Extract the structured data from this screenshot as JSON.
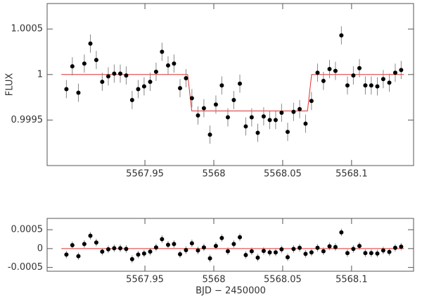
{
  "chart_data": [
    {
      "type": "scatter",
      "ylabel": "FLUX",
      "x": [
        5567.893,
        5567.8973,
        5567.9017,
        5567.906,
        5567.9104,
        5567.9147,
        5567.919,
        5567.9234,
        5567.9277,
        5567.9321,
        5567.9364,
        5567.9407,
        5567.9451,
        5567.9494,
        5567.9538,
        5567.9581,
        5567.9624,
        5567.9668,
        5567.9711,
        5567.9755,
        5567.9798,
        5567.9841,
        5567.9885,
        5567.9928,
        5567.9972,
        5568.0015,
        5568.0058,
        5568.0102,
        5568.0145,
        5568.0189,
        5568.0232,
        5568.0275,
        5568.0319,
        5568.0362,
        5568.0406,
        5568.0449,
        5568.0492,
        5568.0536,
        5568.0579,
        5568.0623,
        5568.0666,
        5568.0709,
        5568.0753,
        5568.0796,
        5568.084,
        5568.0883,
        5568.0926,
        5568.097,
        5568.1013,
        5568.1057,
        5568.11,
        5568.1143,
        5568.1187,
        5568.123,
        5568.1274,
        5568.1317,
        5568.136
      ],
      "values": [
        0.99984,
        1.00009,
        0.9998,
        1.00012,
        1.00034,
        1.00016,
        0.99992,
        0.99998,
        1.00001,
        1.00001,
        0.99999,
        0.99972,
        0.99984,
        0.99987,
        0.99992,
        1.00003,
        1.00025,
        1.0001,
        1.00012,
        0.99985,
        0.99996,
        0.99974,
        0.99955,
        0.99963,
        0.99934,
        0.99967,
        0.99988,
        0.99953,
        0.99972,
        0.9999,
        0.99943,
        0.99953,
        0.99936,
        0.99954,
        0.9995,
        0.9995,
        0.99958,
        0.99937,
        0.99959,
        0.99962,
        0.99946,
        0.99971,
        1.00002,
        0.99993,
        1.00006,
        1.00004,
        1.00043,
        0.99988,
        0.99999,
        1.00007,
        0.99988,
        0.99988,
        0.99987,
        0.99995,
        0.99991,
        1.00002,
        1.00005
      ],
      "errors": [
        0.0001,
        0.0001,
        0.0001,
        0.0001,
        0.0001,
        0.0001,
        0.0001,
        0.0001,
        0.0001,
        0.0001,
        0.0001,
        0.0001,
        0.0001,
        0.0001,
        0.0001,
        0.0001,
        0.0001,
        0.0001,
        0.0001,
        0.0001,
        0.0001,
        0.0001,
        0.0001,
        0.0001,
        0.0001,
        0.0001,
        0.0001,
        0.0001,
        0.0001,
        0.0001,
        0.0001,
        0.0001,
        0.0001,
        0.0001,
        0.0001,
        0.0001,
        0.0001,
        0.0001,
        0.0001,
        0.0001,
        0.0001,
        0.0001,
        0.0001,
        0.0001,
        0.0001,
        0.0001,
        0.0001,
        0.0001,
        0.0001,
        0.0001,
        0.0001,
        0.0001,
        0.0001,
        0.0001,
        0.0001,
        0.0001,
        0.0001
      ],
      "color": "#000000",
      "error_color": "#888888",
      "model": {
        "x": [
          5567.8893,
          5567.981,
          5567.984,
          5568.068,
          5568.071,
          5568.138
        ],
        "values": [
          1,
          1,
          0.9996,
          0.9996,
          1,
          1
        ],
        "color": "#e03030"
      },
      "xlim": [
        5567.879,
        5568.145
      ],
      "ylim": [
        0.999,
        1.00078
      ],
      "xticks": [
        5567.95,
        5568,
        5568.05,
        5568.1
      ],
      "yticks": [
        0.9995,
        1,
        1.0005
      ]
    },
    {
      "type": "scatter",
      "xlabel": "BJD − 2450000",
      "x": [
        5567.893,
        5567.8973,
        5567.9017,
        5567.906,
        5567.9104,
        5567.9147,
        5567.919,
        5567.9234,
        5567.9277,
        5567.9321,
        5567.9364,
        5567.9407,
        5567.9451,
        5567.9494,
        5567.9538,
        5567.9581,
        5567.9624,
        5567.9668,
        5567.9711,
        5567.9755,
        5567.9798,
        5567.9841,
        5567.9885,
        5567.9928,
        5567.9972,
        5568.0015,
        5568.0058,
        5568.0102,
        5568.0145,
        5568.0189,
        5568.0232,
        5568.0275,
        5568.0319,
        5568.0362,
        5568.0406,
        5568.0449,
        5568.0492,
        5568.0536,
        5568.0579,
        5568.0623,
        5568.0666,
        5568.0709,
        5568.0753,
        5568.0796,
        5568.084,
        5568.0883,
        5568.0926,
        5568.097,
        5568.1013,
        5568.1057,
        5568.11,
        5568.1143,
        5568.1187,
        5568.123,
        5568.1274,
        5568.1317,
        5568.136
      ],
      "values": [
        -0.00016,
        9e-05,
        -0.0002,
        0.00012,
        0.00034,
        0.00016,
        -8e-05,
        -2e-05,
        1e-05,
        1e-05,
        -1e-05,
        -0.00028,
        -0.00016,
        -0.00013,
        -8e-05,
        3e-05,
        0.00025,
        0.0001,
        0.00012,
        -0.00015,
        -4e-05,
        0.00014,
        -5e-05,
        3e-05,
        -0.00026,
        7e-05,
        0.00028,
        -7e-05,
        0.00012,
        0.0003,
        -0.00017,
        -7e-05,
        -0.00024,
        -6e-05,
        -0.0001,
        -0.0001,
        -2e-05,
        -0.00023,
        -1e-05,
        2e-05,
        -0.00014,
        -0.0001,
        2e-05,
        -7e-05,
        6e-05,
        4e-05,
        0.00043,
        -0.00012,
        -1e-05,
        7e-05,
        -0.00012,
        -0.00012,
        -0.00013,
        -5e-05,
        -9e-05,
        2e-05,
        5e-05
      ],
      "errors": [
        0.0001,
        0.0001,
        0.0001,
        0.0001,
        0.0001,
        0.0001,
        0.0001,
        0.0001,
        0.0001,
        0.0001,
        0.0001,
        0.0001,
        0.0001,
        0.0001,
        0.0001,
        0.0001,
        0.0001,
        0.0001,
        0.0001,
        0.0001,
        0.0001,
        0.0001,
        0.0001,
        0.0001,
        0.0001,
        0.0001,
        0.0001,
        0.0001,
        0.0001,
        0.0001,
        0.0001,
        0.0001,
        0.0001,
        0.0001,
        0.0001,
        0.0001,
        0.0001,
        0.0001,
        0.0001,
        0.0001,
        0.0001,
        0.0001,
        0.0001,
        0.0001,
        0.0001,
        0.0001,
        0.0001,
        0.0001,
        0.0001,
        0.0001,
        0.0001,
        0.0001,
        0.0001,
        0.0001,
        0.0001,
        0.0001,
        0.0001
      ],
      "color": "#000000",
      "error_color": "#888888",
      "model": {
        "x": [
          5567.8893,
          5568.138
        ],
        "values": [
          0,
          0
        ],
        "color": "#e03030"
      },
      "xlim": [
        5567.879,
        5568.145
      ],
      "ylim": [
        -0.0006,
        0.0008
      ],
      "xticks": [
        5567.95,
        5568,
        5568.05,
        5568.1
      ],
      "yticks": [
        -0.0005,
        0,
        0.0005
      ]
    }
  ]
}
